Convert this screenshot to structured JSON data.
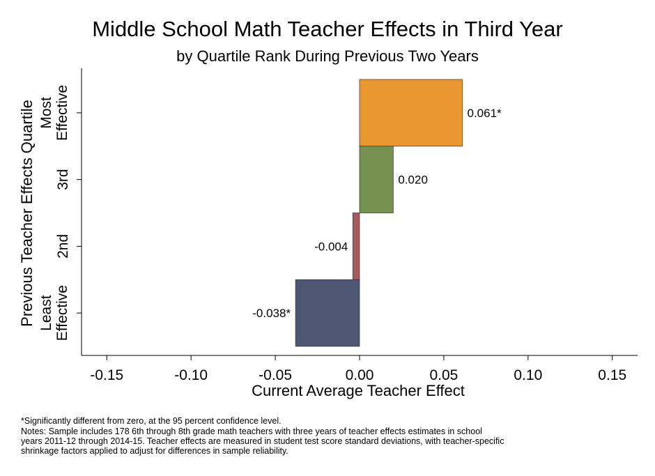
{
  "chart_data": {
    "type": "bar",
    "orientation": "horizontal",
    "title": "Middle School Math Teacher Effects in Third Year",
    "subtitle": "by Quartile Rank During Previous Two Years",
    "xlabel": "Current Average Teacher Effect",
    "ylabel": "Previous Teacher Effects Quartile",
    "xlim": [
      -0.165,
      0.165
    ],
    "xticks": [
      -0.15,
      -0.1,
      -0.05,
      0.0,
      0.05,
      0.1,
      0.15
    ],
    "xtick_labels": [
      "-0.15",
      "-0.10",
      "-0.05",
      "0.00",
      "0.05",
      "0.10",
      "0.15"
    ],
    "categories": [
      {
        "line1": "Most",
        "line2": "Effective"
      },
      {
        "line1": "3rd",
        "line2": ""
      },
      {
        "line1": "2nd",
        "line2": ""
      },
      {
        "line1": "Least",
        "line2": "Effective"
      }
    ],
    "values": [
      0.061,
      0.02,
      -0.004,
      -0.038
    ],
    "data_labels": [
      "0.061*",
      "0.020",
      "-0.004",
      "-0.038*"
    ],
    "colors": [
      "#E99731",
      "#76904F",
      "#A95A5D",
      "#4D5672"
    ],
    "grid": false,
    "legend": "none"
  },
  "notes": {
    "line1": "*Significantly different from zero, at the 95 percent confidence level.",
    "line2": "Notes: Sample includes 178 6th through 8th grade math teachers with three years of teacher effects estimates in school\nyears 2011-12 through 2014-15. Teacher effects are measured in student test score standard deviations, with teacher-specific\nshrinkage factors applied to adjust for differences in sample reliability."
  }
}
